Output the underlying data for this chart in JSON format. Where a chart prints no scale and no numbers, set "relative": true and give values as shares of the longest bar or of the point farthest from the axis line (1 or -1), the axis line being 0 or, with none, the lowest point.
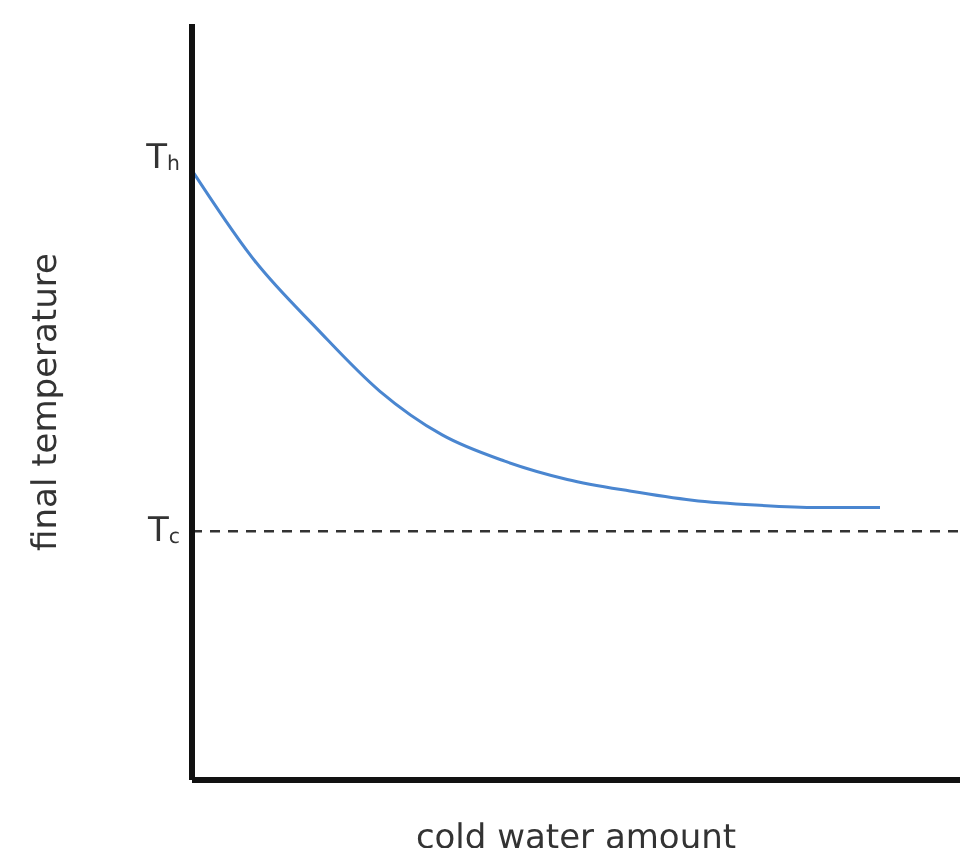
{
  "chart_data": {
    "type": "line",
    "relative": true,
    "xlabel": "cold water amount",
    "ylabel": "final temperature",
    "categories": [
      null,
      null,
      null,
      null,
      null,
      null,
      null,
      null,
      null,
      null,
      null,
      null
    ],
    "series": [
      {
        "color": "#4a86d0",
        "values": [
          1,
          0.852,
          0.74,
          0.638,
          0.566,
          0.523,
          0.493,
          0.474,
          0.459,
          0.451,
          0.447,
          0.447
        ]
      }
    ],
    "ref_lines": [
      {
        "axis": "y",
        "value": 0.408,
        "label": "T$_{c}$",
        "color": "#333333",
        "line_style": "dashed"
      }
    ],
    "annotations": [
      "T$_{h}$"
    ],
    "marker": "none",
    "grid": false,
    "legend": false
  }
}
